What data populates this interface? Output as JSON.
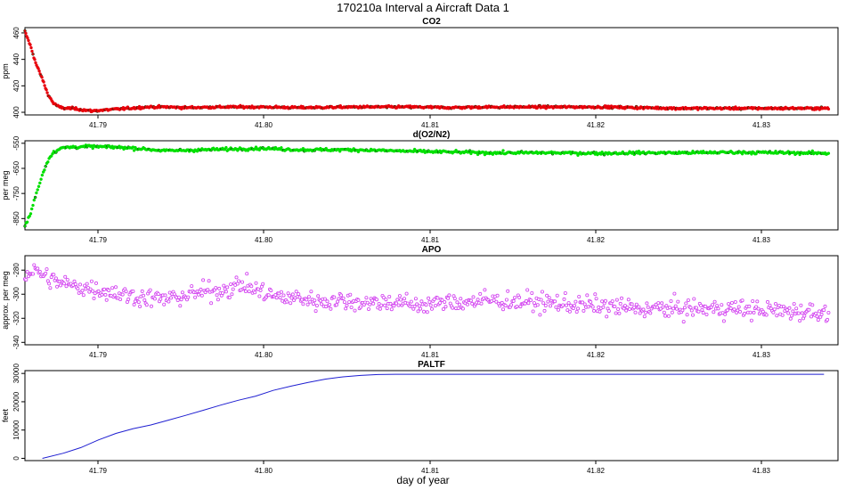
{
  "figure": {
    "title": "170210a   Interval a Aircraft Data 1",
    "xlabel": "day of year"
  },
  "chart_data": [
    {
      "type": "scatter",
      "title": "CO2",
      "ylabel": "ppm",
      "color": "#e8000b",
      "xlim": [
        41.7875,
        41.8305
      ],
      "ylim": [
        398,
        464
      ],
      "xticks": [
        "41.79",
        "41.80",
        "41.81",
        "41.82",
        "41.83"
      ],
      "yticks": [
        "400",
        "420",
        "440",
        "460"
      ],
      "series": [
        {
          "values_x": [
            41.7875,
            41.7878,
            41.7881,
            41.7884,
            41.7887,
            41.789,
            41.7893,
            41.7896,
            41.79,
            41.7905,
            41.791,
            41.7915,
            41.792,
            41.793,
            41.794,
            41.795,
            41.796,
            41.798,
            41.8,
            41.802,
            41.805,
            41.808,
            41.81,
            41.812,
            41.815,
            41.818,
            41.82,
            41.822,
            41.825,
            41.828,
            41.83
          ],
          "values_y": [
            461,
            450,
            436,
            426,
            414,
            407,
            404,
            403,
            403,
            402,
            401,
            401.5,
            402,
            403,
            404,
            404,
            403.5,
            404,
            404,
            403.5,
            404,
            404,
            403.5,
            404,
            404,
            404,
            403.5,
            403,
            403,
            403,
            403
          ]
        }
      ]
    },
    {
      "type": "scatter",
      "title": "d(O2/N2)",
      "ylabel": "per meg",
      "color": "#00e000",
      "xlim": [
        41.7875,
        41.8305
      ],
      "ylim": [
        -895,
        -540
      ],
      "xticks": [
        "41.79",
        "41.80",
        "41.81",
        "41.82",
        "41.83"
      ],
      "yticks": [
        "-550",
        "-650",
        "-750",
        "-850"
      ],
      "series": [
        {
          "values_x": [
            41.7875,
            41.7878,
            41.7881,
            41.7884,
            41.7887,
            41.789,
            41.7895,
            41.79,
            41.791,
            41.792,
            41.793,
            41.795,
            41.797,
            41.799,
            41.8,
            41.802,
            41.805,
            41.808,
            41.81,
            41.812,
            41.815,
            41.818,
            41.82,
            41.822,
            41.825,
            41.828,
            41.83
          ],
          "values_y": [
            -880,
            -830,
            -750,
            -680,
            -620,
            -585,
            -568,
            -565,
            -563,
            -565,
            -568,
            -580,
            -576,
            -572,
            -570,
            -576,
            -576,
            -582,
            -585,
            -588,
            -588,
            -590,
            -588,
            -588,
            -586,
            -588,
            -590
          ]
        }
      ]
    },
    {
      "type": "scatter",
      "title": "APO",
      "ylabel": "approx. per meg",
      "color": "#d23ff0",
      "xlim": [
        41.7875,
        41.8305
      ],
      "ylim": [
        -342,
        -268
      ],
      "xticks": [
        "41.79",
        "41.80",
        "41.81",
        "41.82",
        "41.83"
      ],
      "yticks": [
        "-280",
        "-300",
        "-320",
        "-340"
      ],
      "series": [
        {
          "values_x": [
            41.7875,
            41.788,
            41.789,
            41.79,
            41.791,
            41.792,
            41.793,
            41.794,
            41.795,
            41.796,
            41.797,
            41.798,
            41.799,
            41.8,
            41.801,
            41.802,
            41.803,
            41.804,
            41.805,
            41.806,
            41.807,
            41.808,
            41.81,
            41.812,
            41.815,
            41.818,
            41.82,
            41.822,
            41.825,
            41.828,
            41.83
          ],
          "values_y": [
            -284,
            -280,
            -289,
            -293,
            -295,
            -298,
            -301,
            -303,
            -304,
            -301,
            -298,
            -296,
            -292,
            -298,
            -303,
            -303,
            -306,
            -305,
            -306,
            -307,
            -306,
            -309,
            -307,
            -305,
            -307,
            -310,
            -312,
            -312,
            -312,
            -314,
            -315
          ]
        }
      ]
    },
    {
      "type": "line",
      "title": "PALTF",
      "ylabel": "feet",
      "color": "#1f1fd1",
      "xlim": [
        41.7868,
        41.8333
      ],
      "ylim": [
        -800,
        31000
      ],
      "xticks": [
        "41.79",
        "41.80",
        "41.81",
        "41.82",
        "41.83"
      ],
      "yticks": [
        "0",
        "10000",
        "20000",
        "30000"
      ],
      "series": [
        {
          "values_x": [
            41.7878,
            41.789,
            41.79,
            41.791,
            41.792,
            41.793,
            41.794,
            41.795,
            41.796,
            41.797,
            41.798,
            41.799,
            41.8,
            41.801,
            41.802,
            41.803,
            41.804,
            41.805,
            41.806,
            41.807,
            41.808,
            41.81,
            41.815,
            41.82,
            41.825,
            41.8325
          ],
          "values_y": [
            0,
            1800,
            3800,
            6500,
            8800,
            10500,
            11800,
            13500,
            15200,
            17000,
            18800,
            20500,
            22000,
            24000,
            25500,
            26800,
            28000,
            28800,
            29300,
            29600,
            29700,
            29700,
            29700,
            29700,
            29700,
            29700
          ]
        }
      ]
    }
  ]
}
